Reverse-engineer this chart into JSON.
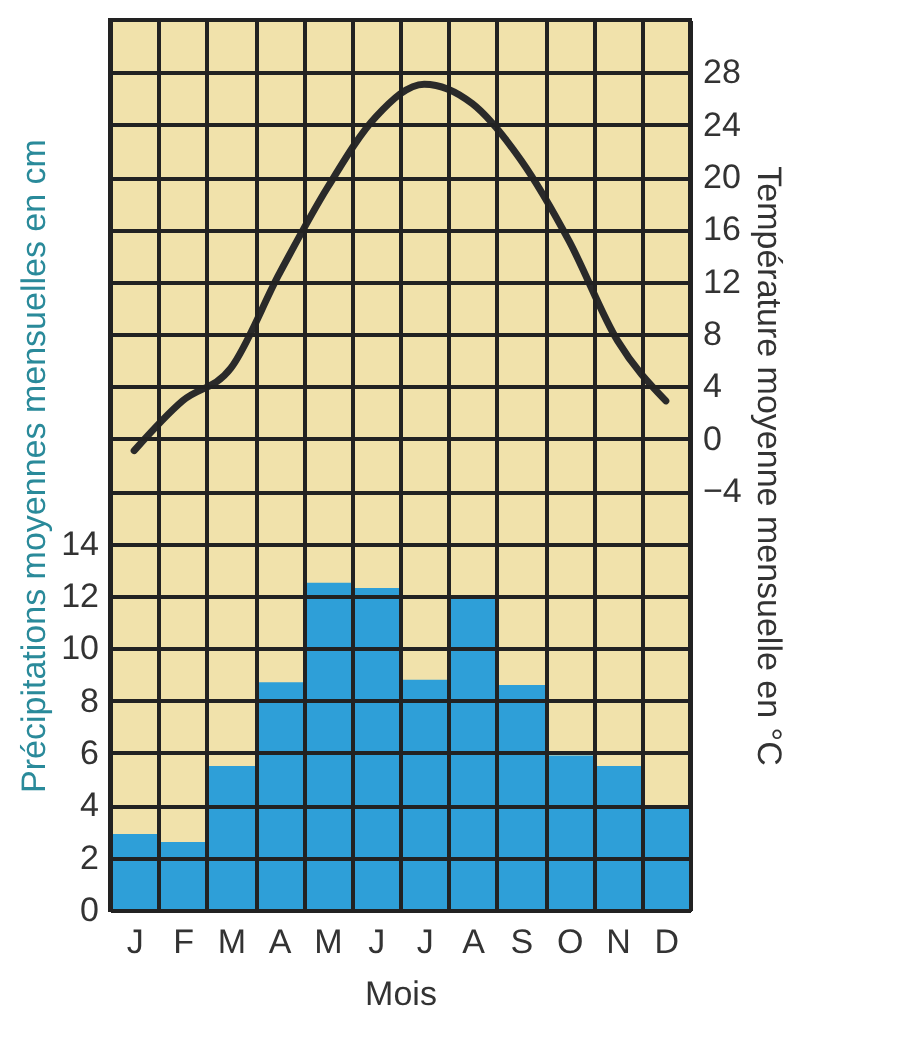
{
  "chart_data": {
    "type": "bar",
    "categories": [
      "J",
      "F",
      "M",
      "A",
      "M",
      "J",
      "J",
      "A",
      "S",
      "O",
      "N",
      "D"
    ],
    "series": [
      {
        "color": "#2e9fd8",
        "values": [
          2.9,
          2.6,
          5.5,
          8.7,
          12.5,
          12.3,
          8.8,
          11.9,
          8.6,
          5.9,
          5.5,
          4.0
        ]
      },
      {
        "type": "line",
        "axis": "y2",
        "color": "#2a2a2a",
        "values": [
          -0.9,
          2.9,
          5.4,
          12.6,
          19.2,
          24.6,
          27.1,
          25.6,
          21.3,
          15.1,
          7.5,
          2.9
        ]
      }
    ],
    "xlabel": "Mois",
    "ylabel": "Précipitations moyennes mensuelles en cm",
    "y2label": "Température moyenne mensuelle en °C",
    "ylim": [
      0,
      34
    ],
    "yticks": [
      0,
      2,
      4,
      6,
      8,
      10,
      12,
      14
    ],
    "y2lim": [
      -36,
      32
    ],
    "y2ticks": [
      -4,
      0,
      4,
      8,
      12,
      16,
      20,
      24,
      28
    ],
    "grid": true,
    "marker": "none",
    "line_style": "solid"
  }
}
